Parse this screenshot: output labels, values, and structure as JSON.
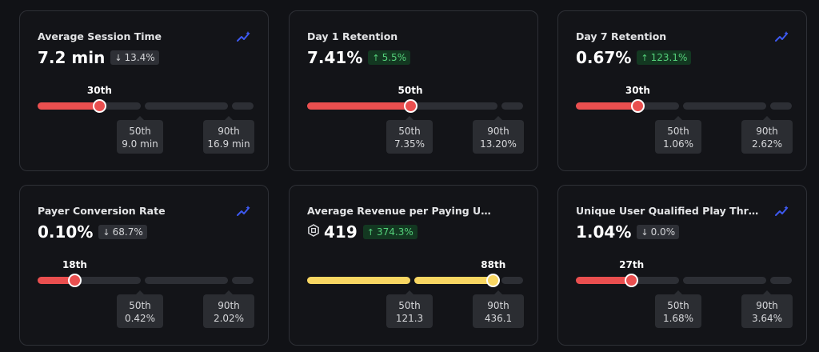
{
  "colors": {
    "low": "#ea4f4f",
    "high": "#f8d662",
    "track": "#2d2f35",
    "trend_icon": "#3d59f0"
  },
  "cards": [
    {
      "title": "Average Session Time",
      "value": "7.2 min",
      "change": "13.4%",
      "direction": "down",
      "percentile_label": "30th",
      "percentile": 30,
      "benchmarks": [
        {
          "label": "50th",
          "value": "9.0 min"
        },
        {
          "label": "90th",
          "value": "16.9 min"
        }
      ],
      "show_trend_icon": true,
      "show_coin_icon": false,
      "color": "low"
    },
    {
      "title": "Day 1 Retention",
      "value": "7.41%",
      "change": "5.5%",
      "direction": "up",
      "percentile_label": "50th",
      "percentile": 50,
      "benchmarks": [
        {
          "label": "50th",
          "value": "7.35%"
        },
        {
          "label": "90th",
          "value": "13.20%"
        }
      ],
      "show_trend_icon": false,
      "show_coin_icon": false,
      "color": "low"
    },
    {
      "title": "Day 7 Retention",
      "value": "0.67%",
      "change": "123.1%",
      "direction": "up",
      "percentile_label": "30th",
      "percentile": 30,
      "benchmarks": [
        {
          "label": "50th",
          "value": "1.06%"
        },
        {
          "label": "90th",
          "value": "2.62%"
        }
      ],
      "show_trend_icon": true,
      "show_coin_icon": false,
      "color": "low"
    },
    {
      "title": "Payer Conversion Rate",
      "value": "0.10%",
      "change": "68.7%",
      "direction": "down",
      "percentile_label": "18th",
      "percentile": 18,
      "benchmarks": [
        {
          "label": "50th",
          "value": "0.42%"
        },
        {
          "label": "90th",
          "value": "2.02%"
        }
      ],
      "show_trend_icon": true,
      "show_coin_icon": false,
      "color": "low"
    },
    {
      "title": "Average Revenue per Paying Users",
      "value": "419",
      "change": "374.3%",
      "direction": "up",
      "percentile_label": "88th",
      "percentile": 88,
      "benchmarks": [
        {
          "label": "50th",
          "value": "121.3"
        },
        {
          "label": "90th",
          "value": "436.1"
        }
      ],
      "show_trend_icon": false,
      "show_coin_icon": true,
      "color": "high"
    },
    {
      "title": "Unique User Qualified Play Through...",
      "value": "1.04%",
      "change": "0.0%",
      "direction": "down",
      "percentile_label": "27th",
      "percentile": 27,
      "benchmarks": [
        {
          "label": "50th",
          "value": "1.68%"
        },
        {
          "label": "90th",
          "value": "3.64%"
        }
      ],
      "show_trend_icon": true,
      "show_coin_icon": false,
      "color": "low"
    }
  ]
}
